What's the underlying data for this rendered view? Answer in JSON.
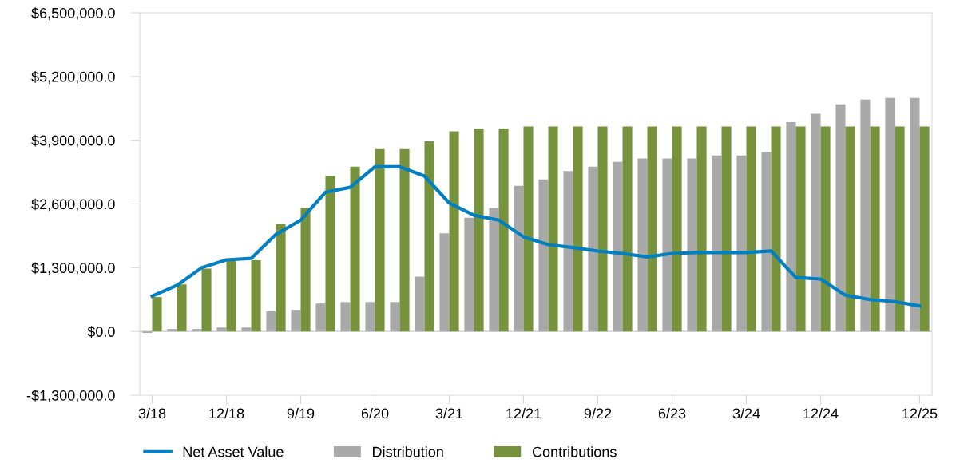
{
  "chart_data": {
    "type": "bar",
    "categories": [
      "3/18",
      null,
      null,
      "12/18",
      null,
      null,
      "9/19",
      null,
      null,
      "6/20",
      null,
      null,
      "3/21",
      null,
      null,
      "12/21",
      null,
      null,
      "9/22",
      null,
      null,
      "6/23",
      null,
      null,
      "3/24",
      null,
      null,
      "12/24",
      null,
      null,
      null,
      "12/25"
    ],
    "series": [
      {
        "name": "Net Asset Value",
        "type": "line",
        "color": "#0080c0",
        "values": [
          720000,
          940000,
          1300000,
          1460000,
          1490000,
          1980000,
          2270000,
          2840000,
          2940000,
          3360000,
          3360000,
          3170000,
          2620000,
          2370000,
          2270000,
          1930000,
          1770000,
          1710000,
          1640000,
          1590000,
          1520000,
          1590000,
          1610000,
          1610000,
          1610000,
          1640000,
          1100000,
          1070000,
          740000,
          650000,
          610000,
          520000
        ]
      },
      {
        "name": "Distribution",
        "color": "#a9a9a9",
        "values": [
          -30000,
          50000,
          50000,
          80000,
          80000,
          410000,
          440000,
          570000,
          600000,
          600000,
          600000,
          1120000,
          2000000,
          2320000,
          2520000,
          2970000,
          3100000,
          3270000,
          3360000,
          3460000,
          3530000,
          3530000,
          3530000,
          3590000,
          3590000,
          3660000,
          4270000,
          4440000,
          4630000,
          4730000,
          4760000,
          4760000
        ]
      },
      {
        "name": "Contributions",
        "color": "#76923c",
        "values": [
          700000,
          960000,
          1280000,
          1440000,
          1450000,
          2190000,
          2520000,
          3170000,
          3360000,
          3720000,
          3720000,
          3880000,
          4080000,
          4140000,
          4140000,
          4180000,
          4180000,
          4180000,
          4180000,
          4180000,
          4180000,
          4180000,
          4180000,
          4180000,
          4180000,
          4180000,
          4180000,
          4180000,
          4180000,
          4180000,
          4180000,
          4180000
        ]
      }
    ],
    "ylim": [
      -1300000,
      6500000
    ],
    "yticks": [
      {
        "value": -1300000,
        "label": "-$1,300,000.0"
      },
      {
        "value": 0,
        "label": "$0.0"
      },
      {
        "value": 1300000,
        "label": "$1,300,000.0"
      },
      {
        "value": 2600000,
        "label": "$2,600,000.0"
      },
      {
        "value": 3900000,
        "label": "$3,900,000.0"
      },
      {
        "value": 5200000,
        "label": "$5,200,000.0"
      },
      {
        "value": 6500000,
        "label": "$6,500,000.0"
      }
    ],
    "ref_lines": [
      {
        "axis": "y",
        "value": 0,
        "color": "#d9d9d9"
      }
    ],
    "legend": "bottom",
    "marker": "none",
    "line_style": "solid"
  }
}
